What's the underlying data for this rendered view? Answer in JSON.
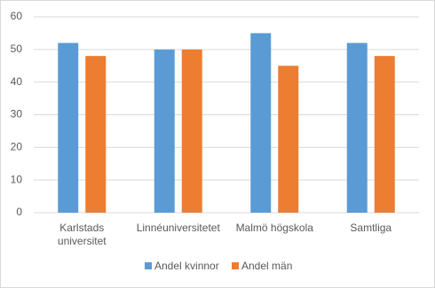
{
  "chart_data": {
    "type": "bar",
    "categories": [
      "Karlstads universitet",
      "Linnéuniversitetet",
      "Malmö högskola",
      "Samtliga"
    ],
    "series": [
      {
        "name": "Andel kvinnor",
        "color": "#5b9bd5",
        "values": [
          52,
          50,
          55,
          52
        ]
      },
      {
        "name": "Andel män",
        "color": "#ed7d31",
        "values": [
          48,
          50,
          45,
          48
        ]
      }
    ],
    "ylim": [
      0,
      60
    ],
    "yticks": [
      0,
      10,
      20,
      30,
      40,
      50,
      60
    ],
    "grid": true,
    "legend": "bottom"
  }
}
